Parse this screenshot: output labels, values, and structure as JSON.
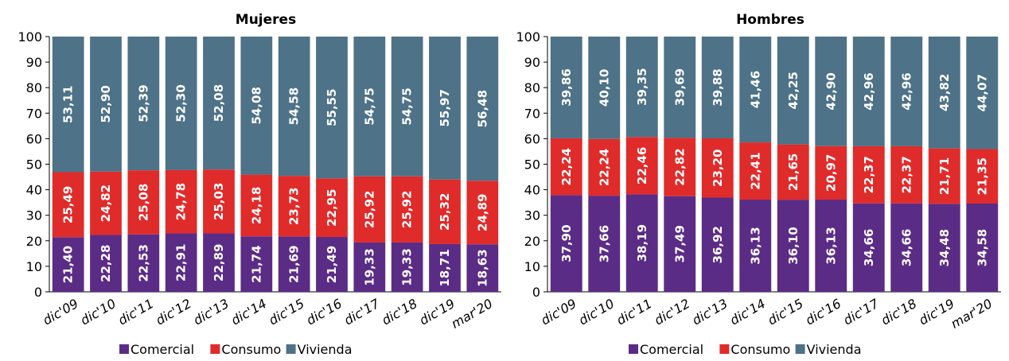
{
  "chart_data": [
    {
      "type": "bar",
      "stacked": true,
      "title": "Mujeres",
      "categories": [
        "dic'09",
        "dic'10",
        "dic'11",
        "dic'12",
        "dic'13",
        "dic'14",
        "dic'15",
        "dic'16",
        "dic'17",
        "dic'18",
        "dic'19",
        "mar'20"
      ],
      "series": [
        {
          "name": "Comercial",
          "color": "#5b2c86",
          "values": [
            21.4,
            22.28,
            22.53,
            22.91,
            22.89,
            21.74,
            21.69,
            21.49,
            19.33,
            19.33,
            18.71,
            18.63
          ],
          "labels": [
            "21,40",
            "22,28",
            "22,53",
            "22,91",
            "22,89",
            "21,74",
            "21,69",
            "21,49",
            "19,33",
            "19,33",
            "18,71",
            "18,63"
          ]
        },
        {
          "name": "Consumo",
          "color": "#e02b2b",
          "values": [
            25.49,
            24.82,
            25.08,
            24.78,
            25.03,
            24.18,
            23.73,
            22.95,
            25.92,
            25.92,
            25.32,
            24.89
          ],
          "labels": [
            "25,49",
            "24,82",
            "25,08",
            "24,78",
            "25,03",
            "24,18",
            "23,73",
            "22,95",
            "25,92",
            "25,92",
            "25,32",
            "24,89"
          ]
        },
        {
          "name": "Vivienda",
          "color": "#4e7287",
          "values": [
            53.11,
            52.9,
            52.39,
            52.3,
            52.08,
            54.08,
            54.58,
            55.55,
            54.75,
            54.75,
            55.97,
            56.48
          ],
          "labels": [
            "53,11",
            "52,90",
            "52,39",
            "52,30",
            "52,08",
            "54,08",
            "54,58",
            "55,55",
            "54,75",
            "54,75",
            "55,97",
            "56,48"
          ]
        }
      ],
      "ylim": [
        0,
        100
      ],
      "yticks": [
        "0",
        "10",
        "20",
        "30",
        "40",
        "50",
        "60",
        "70",
        "80",
        "90",
        "100"
      ],
      "legend": "bottom"
    },
    {
      "type": "bar",
      "stacked": true,
      "title": "Hombres",
      "categories": [
        "dic'09",
        "dic'10",
        "dic'11",
        "dic'12",
        "dic'13",
        "dic'14",
        "dic'15",
        "dic'16",
        "dic'17",
        "dic'18",
        "dic'19",
        "mar'20"
      ],
      "series": [
        {
          "name": "Comercial",
          "color": "#5b2c86",
          "values": [
            37.9,
            37.66,
            38.19,
            37.49,
            36.92,
            36.13,
            36.1,
            36.13,
            34.66,
            34.66,
            34.48,
            34.58
          ],
          "labels": [
            "37,90",
            "37,66",
            "38,19",
            "37,49",
            "36,92",
            "36,13",
            "36,10",
            "36,13",
            "34,66",
            "34,66",
            "34,48",
            "34,58"
          ]
        },
        {
          "name": "Consumo",
          "color": "#e02b2b",
          "values": [
            22.24,
            22.24,
            22.46,
            22.82,
            23.2,
            22.41,
            21.65,
            20.97,
            22.37,
            22.37,
            21.71,
            21.35
          ],
          "labels": [
            "22,24",
            "22,24",
            "22,46",
            "22,82",
            "23,20",
            "22,41",
            "21,65",
            "20,97",
            "22,37",
            "22,37",
            "21,71",
            "21,35"
          ]
        },
        {
          "name": "Vivienda",
          "color": "#4e7287",
          "values": [
            39.86,
            40.1,
            39.35,
            39.69,
            39.88,
            41.46,
            42.25,
            42.9,
            42.96,
            42.96,
            43.82,
            44.07
          ],
          "labels": [
            "39,86",
            "40,10",
            "39,35",
            "39,69",
            "39,88",
            "41,46",
            "42,25",
            "42,90",
            "42,96",
            "42,96",
            "43,82",
            "44,07"
          ]
        }
      ],
      "ylim": [
        0,
        100
      ],
      "yticks": [
        "0",
        "10",
        "20",
        "30",
        "40",
        "50",
        "60",
        "70",
        "80",
        "90",
        "100"
      ],
      "legend": "bottom"
    }
  ]
}
